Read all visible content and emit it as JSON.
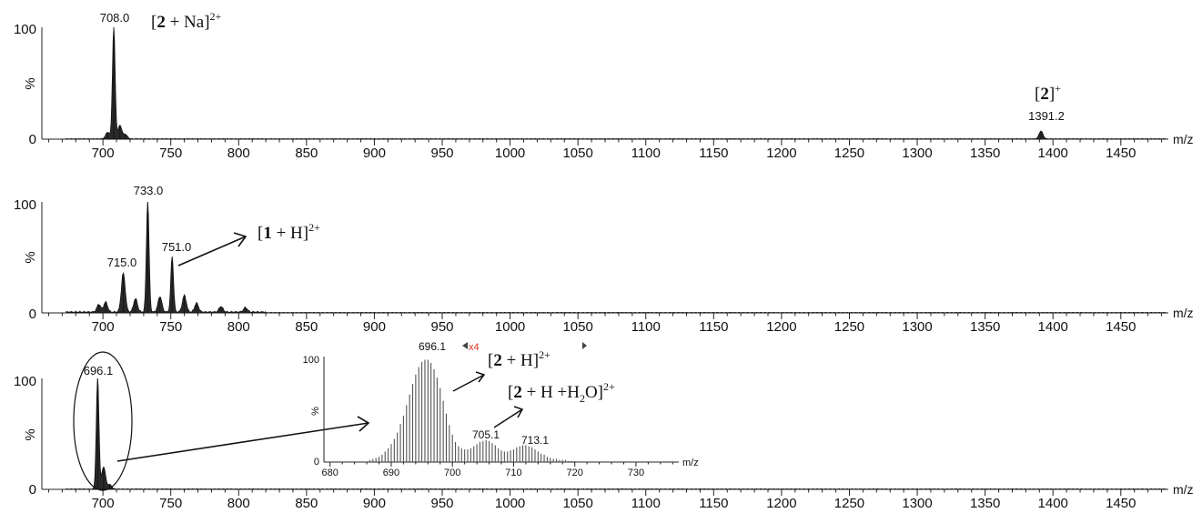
{
  "chart_data": [
    {
      "type": "line",
      "panel": "top",
      "xlabel": "m/z",
      "ylabel": "%",
      "xlim": [
        655,
        1485
      ],
      "ylim": [
        0,
        100
      ],
      "yticks": [
        "0",
        "100"
      ],
      "xticks": [
        700,
        750,
        800,
        850,
        900,
        950,
        1000,
        1050,
        1100,
        1150,
        1200,
        1250,
        1300,
        1350,
        1400,
        1450
      ],
      "peaks": [
        {
          "x": 708.0,
          "y": 100,
          "label": "708.0"
        },
        {
          "x": 712.5,
          "y": 12
        },
        {
          "x": 703.5,
          "y": 6
        },
        {
          "x": 716.5,
          "y": 4
        },
        {
          "x": 1391.2,
          "y": 7,
          "label": "1391.2"
        }
      ],
      "annotations": [
        {
          "text": "[2 + Na]",
          "bold": "2",
          "sup": "2+"
        },
        {
          "text": "[2]",
          "bold": "2",
          "sup": "+"
        }
      ]
    },
    {
      "type": "line",
      "panel": "middle",
      "xlabel": "m/z",
      "ylabel": "%",
      "xlim": [
        655,
        1485
      ],
      "ylim": [
        0,
        100
      ],
      "yticks": [
        "0",
        "100"
      ],
      "xticks": [
        700,
        750,
        800,
        850,
        900,
        950,
        1000,
        1050,
        1100,
        1150,
        1200,
        1250,
        1300,
        1350,
        1400,
        1450
      ],
      "peaks": [
        {
          "x": 697,
          "y": 7
        },
        {
          "x": 702,
          "y": 9
        },
        {
          "x": 715.0,
          "y": 35,
          "label": "715.0"
        },
        {
          "x": 724,
          "y": 12
        },
        {
          "x": 733.0,
          "y": 100,
          "label": "733.0"
        },
        {
          "x": 742,
          "y": 14
        },
        {
          "x": 751.0,
          "y": 50,
          "label": "751.0"
        },
        {
          "x": 760,
          "y": 15
        },
        {
          "x": 769,
          "y": 8
        },
        {
          "x": 787,
          "y": 5
        },
        {
          "x": 805,
          "y": 4
        }
      ],
      "annotations": [
        {
          "text": "[1 + H]",
          "bold": "1",
          "sup": "2+"
        }
      ]
    },
    {
      "type": "line",
      "panel": "bottom",
      "xlabel": "m/z",
      "ylabel": "%",
      "xlim": [
        655,
        1485
      ],
      "ylim": [
        0,
        100
      ],
      "yticks": [
        "0",
        "100"
      ],
      "xticks": [
        700,
        750,
        800,
        850,
        900,
        950,
        1000,
        1050,
        1100,
        1150,
        1200,
        1250,
        1300,
        1350,
        1400,
        1450
      ],
      "peaks": [
        {
          "x": 696.1,
          "y": 100,
          "label": "696.1"
        },
        {
          "x": 700.5,
          "y": 20
        },
        {
          "x": 705,
          "y": 4
        }
      ]
    },
    {
      "type": "bar",
      "panel": "inset",
      "xlabel": "m/z",
      "ylabel": "%",
      "xlim": [
        679,
        737
      ],
      "ylim": [
        0,
        100
      ],
      "yticks": [
        "0",
        "100"
      ],
      "xticks": [
        680,
        690,
        700,
        710,
        720,
        730
      ],
      "scale_label": "x4",
      "labeled_peaks": [
        {
          "x": 696.1,
          "label": "696.1"
        },
        {
          "x": 705.1,
          "label": "705.1"
        },
        {
          "x": 713.1,
          "label": "713.1"
        }
      ],
      "x": [
        686.5,
        687.0,
        687.5,
        688.0,
        688.5,
        689.0,
        689.5,
        690.0,
        690.5,
        691.0,
        691.5,
        692.0,
        692.5,
        693.0,
        693.5,
        694.0,
        694.5,
        695.0,
        695.5,
        696.0,
        696.5,
        697.0,
        697.5,
        698.0,
        698.5,
        699.0,
        699.5,
        700.0,
        700.5,
        701.0,
        701.5,
        702.0,
        702.5,
        703.0,
        703.5,
        704.0,
        704.5,
        705.0,
        705.5,
        706.0,
        706.5,
        707.0,
        707.5,
        708.0,
        708.5,
        709.0,
        709.5,
        710.0,
        710.5,
        711.0,
        711.5,
        712.0,
        712.5,
        713.0,
        713.5,
        714.0,
        714.5,
        715.0,
        715.5,
        716.0,
        716.5,
        717.0,
        717.5,
        718.0,
        718.5,
        719.0,
        719.5,
        720.0
      ],
      "values": [
        2,
        3,
        4,
        5,
        7,
        10,
        13,
        17,
        22,
        28,
        36,
        44,
        54,
        64,
        74,
        83,
        90,
        95,
        97,
        97,
        94,
        88,
        80,
        70,
        58,
        46,
        35,
        26,
        19,
        15,
        13,
        12,
        12,
        13,
        15,
        17,
        19,
        20,
        21,
        20,
        18,
        16,
        13,
        11,
        10,
        10,
        11,
        12,
        14,
        15,
        16,
        16,
        15,
        14,
        12,
        10,
        8,
        7,
        5,
        4,
        3,
        3,
        2,
        2,
        2,
        1,
        1,
        1
      ],
      "annotations": [
        {
          "text": "[2 + H]",
          "bold": "2",
          "sup": "2+"
        },
        {
          "text": "[2 + H +H2O]",
          "bold": "2",
          "sub": "2",
          "sup": "2+"
        }
      ]
    }
  ]
}
